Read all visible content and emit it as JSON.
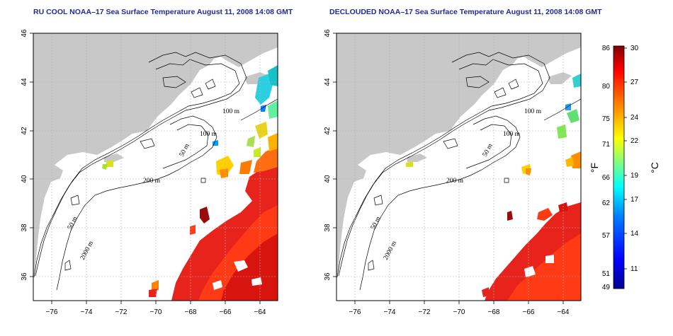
{
  "panels": [
    {
      "title": "RU COOL NOAA–17 Sea Surface Temperature August 11, 2008 14:08 GMT",
      "contours": [
        "100 m",
        "100 m",
        "50 m",
        "200 m",
        "50 m",
        "2000 m"
      ]
    },
    {
      "title": "DECLOUDED NOAA–17 Sea Surface Temperature August 11, 2008 14:08 GMT",
      "contours": [
        "100 m",
        "100 m",
        "50 m",
        "200 m",
        "50 m",
        "2000 m"
      ]
    }
  ],
  "axes": {
    "x_ticks": [
      "−76",
      "−74",
      "−72",
      "−70",
      "−68",
      "−66",
      "−64"
    ],
    "y_ticks": [
      "36",
      "38",
      "40",
      "42",
      "44",
      "46"
    ]
  },
  "colorbar": {
    "unit_f": "°F",
    "unit_c": "°C",
    "f_ticks": [
      "86",
      "80",
      "75",
      "71",
      "66",
      "62",
      "57",
      "51",
      "49"
    ],
    "c_ticks": [
      "30",
      "27",
      "24",
      "22",
      "19",
      "17",
      "14",
      "11"
    ]
  },
  "colors": {
    "land": "#c8c8c8",
    "title": "#1f2a9c",
    "colormap": [
      "#00008f",
      "#0000ff",
      "#0080ff",
      "#00ffff",
      "#80ff80",
      "#ffff00",
      "#ff8000",
      "#ff0000",
      "#800000"
    ]
  }
}
